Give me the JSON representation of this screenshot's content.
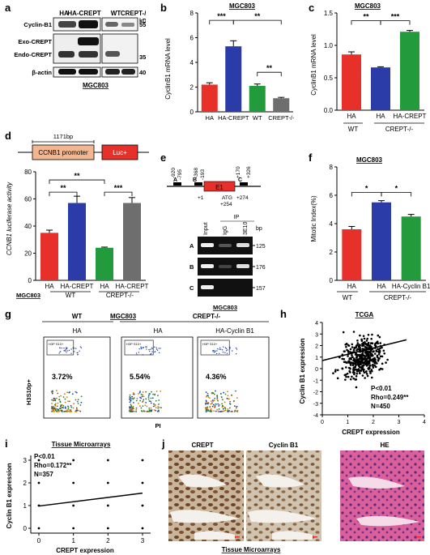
{
  "panels": {
    "a": {
      "letter": "a",
      "lanes": [
        "HA",
        "HA-CREPT",
        "WT",
        "CREPT-/-"
      ],
      "kda_label": "kDa",
      "rows": [
        {
          "label": "Cyclin-B1",
          "marker": "55"
        },
        {
          "label": "Exo-CREPT",
          "marker": ""
        },
        {
          "label": "Endo-CREPT",
          "marker": "35"
        },
        {
          "label": "β-actin",
          "marker": "40"
        }
      ],
      "cell_line": "MGC803"
    },
    "b": {
      "letter": "b",
      "title": "MGC803",
      "ylabel": "CyclinB1 mRNA level",
      "yticks": [
        "0",
        "2",
        "4",
        "6",
        "8"
      ],
      "categories": [
        "HA",
        "HA-CREPT",
        "WT",
        "CREPT-/-"
      ],
      "sig": [
        "***",
        "**",
        "**"
      ]
    },
    "c": {
      "letter": "c",
      "title": "MGC803",
      "ylabel": "CyclinB1 mRNA level",
      "yticks": [
        "0.0",
        "0.5",
        "1.0",
        "1.5"
      ],
      "group_labels": [
        "HA",
        "HA",
        "HA-CREPT"
      ],
      "group_bottom": [
        "WT",
        "CREPT-/-"
      ],
      "sig": [
        "**",
        "***"
      ]
    },
    "d": {
      "letter": "d",
      "construct_size": "1171bp",
      "promoter": "CCNB1 promoter",
      "luc": "Luc+",
      "ylabel": "CCNB1 luciferase activity",
      "yticks": [
        "0",
        "20",
        "40",
        "60",
        "80"
      ],
      "categories": [
        "HA",
        "HA-CREPT",
        "HA",
        "HA-CREPT"
      ],
      "cell_line": "MGC803",
      "groups": [
        "WT",
        "CREPT-/-"
      ],
      "sig": [
        "**",
        "**",
        "***"
      ]
    },
    "e": {
      "letter": "e",
      "positions": [
        "-920",
        "-795",
        "-368",
        "-193",
        "+170",
        "+326",
        "+1",
        "+254",
        "+274",
        "ATG"
      ],
      "region_labels": [
        "A",
        "B",
        "C"
      ],
      "exon": "E1",
      "ip_label": "IP",
      "lane_labels": [
        "Input",
        "IgG",
        "3E10"
      ],
      "bp_label": "bp",
      "rows": [
        {
          "label": "A",
          "size": "125"
        },
        {
          "label": "B",
          "size": "176"
        },
        {
          "label": "C",
          "size": "157"
        }
      ],
      "cell_line": "MGC803"
    },
    "f": {
      "letter": "f",
      "title": "MGC803",
      "ylabel": "Mitotic Index(%)",
      "yticks": [
        "0",
        "2",
        "4",
        "6",
        "8"
      ],
      "categories": [
        "HA",
        "HA",
        "HA-Cyclin B1"
      ],
      "groups": [
        "WT",
        "CREPT-/-"
      ],
      "sig": [
        "*",
        "*"
      ]
    },
    "g": {
      "letter": "g",
      "top_groups": [
        "WT",
        "MGC803",
        "CREPT-/-"
      ],
      "subtitles": [
        "HA",
        "HA",
        "HA-Cyclin B1"
      ],
      "percents": [
        "3.72%",
        "5.54%",
        "4.36%"
      ],
      "gate_texts": [
        "H3P S10+\n3.72%",
        "H3P S10+\n5.54%",
        "H3P S10+\n4.36%"
      ],
      "ylabel": "H3S10p+",
      "xlabel": "PI"
    },
    "h": {
      "letter": "h",
      "title": "TCGA",
      "ylabel": "Cyclin B1 expression",
      "xlabel": "CREPT expression",
      "stats": [
        "P<0.01",
        "Rho=0.249**",
        "N=450"
      ],
      "xticks": [
        "0",
        "1",
        "2",
        "3",
        "4"
      ],
      "yticks": [
        "-4",
        "-3",
        "-2",
        "-1",
        "0",
        "1",
        "2",
        "3",
        "4"
      ]
    },
    "i": {
      "letter": "i",
      "title": "Tissue Microarrays",
      "ylabel": "Cyclin B1 expression",
      "xlabel": "CREPT expression",
      "stats": [
        "P<0.01",
        "Rho=0.172**",
        "N=357"
      ],
      "xticks": [
        "0",
        "1",
        "2",
        "3"
      ],
      "yticks": [
        "0",
        "1",
        "2",
        "3"
      ]
    },
    "j": {
      "letter": "j",
      "images": [
        "CREPT",
        "Cyclin B1",
        "HE"
      ],
      "caption": "Tissue Microarrays"
    }
  },
  "chart_data": [
    {
      "id": "b",
      "type": "bar",
      "title": "MGC803",
      "ylabel": "CyclinB1 mRNA level",
      "ylim": [
        0,
        8
      ],
      "categories": [
        "HA",
        "HA-CREPT",
        "WT",
        "CREPT-/-"
      ],
      "values": [
        2.2,
        5.3,
        2.1,
        1.1
      ],
      "errors": [
        0.15,
        0.45,
        0.15,
        0.07
      ],
      "colors": [
        "#e8302a",
        "#2b3ba8",
        "#239a3c",
        "#6e6e6e"
      ]
    },
    {
      "id": "c",
      "type": "bar",
      "title": "MGC803",
      "ylabel": "CyclinB1 mRNA level",
      "ylim": [
        0,
        1.5
      ],
      "categories": [
        "HA",
        "HA",
        "HA-CREPT"
      ],
      "values": [
        0.86,
        0.66,
        1.21
      ],
      "errors": [
        0.04,
        0.01,
        0.02
      ],
      "colors": [
        "#e8302a",
        "#2b3ba8",
        "#239a3c"
      ]
    },
    {
      "id": "d",
      "type": "bar",
      "ylabel": "CCNB1 luciferase activity",
      "ylim": [
        0,
        80
      ],
      "categories": [
        "HA",
        "HA-CREPT",
        "HA",
        "HA-CREPT"
      ],
      "values": [
        35,
        57,
        24,
        57
      ],
      "errors": [
        2,
        5,
        0.5,
        4
      ],
      "colors": [
        "#e8302a",
        "#2b3ba8",
        "#239a3c",
        "#6e6e6e"
      ]
    },
    {
      "id": "f",
      "type": "bar",
      "title": "MGC803",
      "ylabel": "Mitotic Index(%)",
      "ylim": [
        0,
        8
      ],
      "categories": [
        "HA",
        "HA",
        "HA-Cyclin B1"
      ],
      "values": [
        3.6,
        5.5,
        4.5
      ],
      "errors": [
        0.2,
        0.12,
        0.15
      ],
      "colors": [
        "#e8302a",
        "#2b3ba8",
        "#239a3c"
      ]
    },
    {
      "id": "h",
      "type": "scatter",
      "title": "TCGA",
      "xlabel": "CREPT expression",
      "ylabel": "Cyclin B1 expression",
      "xlim": [
        0,
        4
      ],
      "ylim": [
        -4,
        4
      ],
      "fit_line": {
        "x": [
          0,
          3.3
        ],
        "y": [
          0.7,
          2.5
        ]
      },
      "stats": [
        "P<0.01",
        "Rho=0.249**",
        "N=450"
      ]
    },
    {
      "id": "i",
      "type": "scatter",
      "title": "Tissue Microarrays",
      "xlabel": "CREPT expression",
      "ylabel": "Cyclin B1 expression",
      "xlim": [
        0,
        3
      ],
      "ylim": [
        0,
        3
      ],
      "points": [
        [
          0,
          0
        ],
        [
          0,
          1
        ],
        [
          0,
          2
        ],
        [
          0,
          3
        ],
        [
          1,
          0
        ],
        [
          1,
          1
        ],
        [
          1,
          2
        ],
        [
          1,
          3
        ],
        [
          2,
          0
        ],
        [
          2,
          1
        ],
        [
          2,
          2
        ],
        [
          2,
          3
        ],
        [
          3,
          0
        ],
        [
          3,
          1
        ],
        [
          3,
          2
        ],
        [
          3,
          3
        ]
      ],
      "fit_line": {
        "x": [
          0,
          3
        ],
        "y": [
          0.98,
          1.55
        ]
      },
      "stats": [
        "P<0.01",
        "Rho=0.172**",
        "N=357"
      ]
    }
  ]
}
